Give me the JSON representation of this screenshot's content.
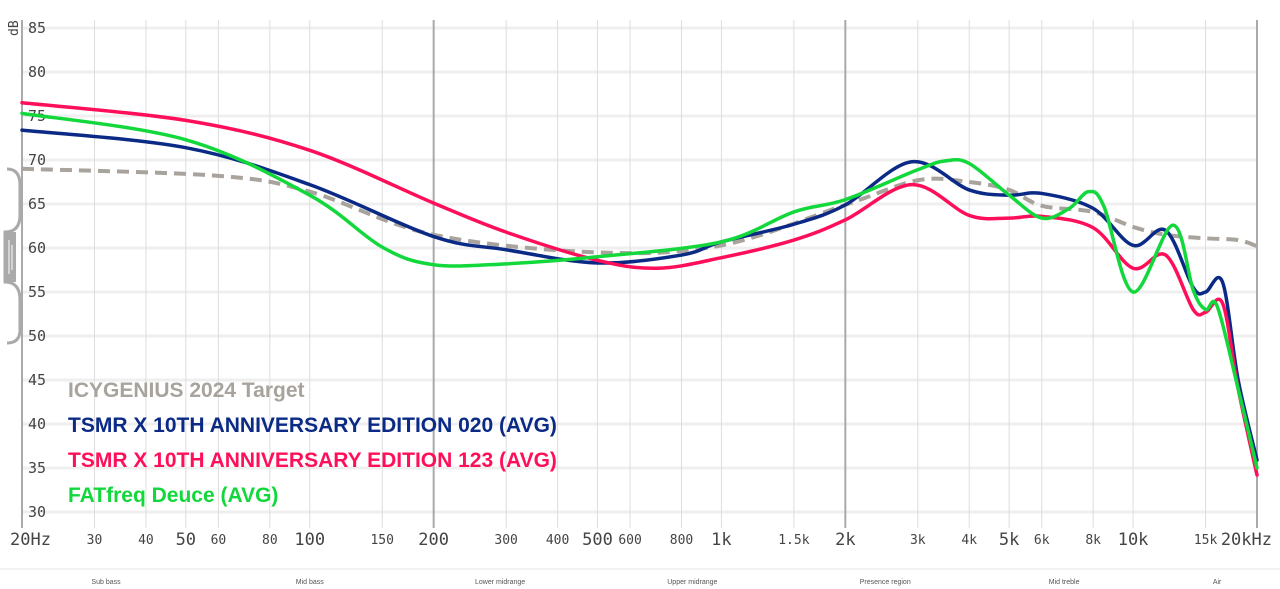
{
  "chart_data": {
    "type": "line",
    "ylabel": "dB",
    "xscale": "log",
    "xlim": [
      20,
      20000
    ],
    "ylim": [
      28,
      86
    ],
    "grid": true,
    "legend_position": "bottom-left",
    "y_ticks": [
      "85",
      "80",
      "75",
      "70",
      "65",
      "60",
      "55",
      "50",
      "45",
      "40",
      "35",
      "30"
    ],
    "y_tick_values": [
      85,
      80,
      75,
      70,
      65,
      60,
      55,
      50,
      45,
      40,
      35,
      30
    ],
    "x_ticks": [
      {
        "f": 20,
        "label": "20Hz",
        "major": true
      },
      {
        "f": 30,
        "label": "30"
      },
      {
        "f": 40,
        "label": "40"
      },
      {
        "f": 50,
        "label": "50",
        "major": true
      },
      {
        "f": 60,
        "label": "60"
      },
      {
        "f": 80,
        "label": "80"
      },
      {
        "f": 100,
        "label": "100",
        "major": true
      },
      {
        "f": 150,
        "label": "150"
      },
      {
        "f": 200,
        "label": "200",
        "major": true
      },
      {
        "f": 300,
        "label": "300"
      },
      {
        "f": 400,
        "label": "400"
      },
      {
        "f": 500,
        "label": "500",
        "major": true
      },
      {
        "f": 600,
        "label": "600"
      },
      {
        "f": 800,
        "label": "800"
      },
      {
        "f": 1000,
        "label": "1k",
        "major": true
      },
      {
        "f": 1500,
        "label": "1.5k"
      },
      {
        "f": 2000,
        "label": "2k",
        "major": true
      },
      {
        "f": 3000,
        "label": "3k"
      },
      {
        "f": 4000,
        "label": "4k"
      },
      {
        "f": 5000,
        "label": "5k",
        "major": true
      },
      {
        "f": 6000,
        "label": "6k"
      },
      {
        "f": 8000,
        "label": "8k"
      },
      {
        "f": 10000,
        "label": "10k",
        "major": true
      },
      {
        "f": 15000,
        "label": "15k"
      },
      {
        "f": 20000,
        "label": "20kHz",
        "major": true
      }
    ],
    "bands": [
      {
        "label": "Sub bass",
        "f": 32
      },
      {
        "label": "Mid bass",
        "f": 100
      },
      {
        "label": "Lower midrange",
        "f": 290
      },
      {
        "label": "Upper midrange",
        "f": 850
      },
      {
        "label": "Presence region",
        "f": 2500
      },
      {
        "label": "Mid treble",
        "f": 6800
      },
      {
        "label": "Air",
        "f": 16000
      }
    ],
    "series": [
      {
        "name": "ICYGENIUS 2024 Target",
        "color": "#a8a39c",
        "dashed": true,
        "points": [
          [
            20,
            69.0
          ],
          [
            60,
            68.2
          ],
          [
            100,
            66.4
          ],
          [
            200,
            61.5
          ],
          [
            500,
            59.5
          ],
          [
            1000,
            60.3
          ],
          [
            2000,
            64.9
          ],
          [
            3000,
            67.7
          ],
          [
            4000,
            67.5
          ],
          [
            5000,
            66.6
          ],
          [
            6000,
            64.8
          ],
          [
            8000,
            64.1
          ],
          [
            10000,
            62.4
          ],
          [
            12000,
            61.5
          ],
          [
            15000,
            61.1
          ],
          [
            18000,
            60.9
          ],
          [
            20000,
            60.2
          ]
        ]
      },
      {
        "name": "TSMR X 10TH ANNIVERSARY EDITION 020 (AVG)",
        "color": "#0a2a85",
        "points": [
          [
            20,
            73.4
          ],
          [
            50,
            71.4
          ],
          [
            100,
            67.2
          ],
          [
            200,
            61.3
          ],
          [
            300,
            59.8
          ],
          [
            500,
            58.3
          ],
          [
            800,
            59.2
          ],
          [
            1000,
            60.7
          ],
          [
            1500,
            62.7
          ],
          [
            2000,
            64.9
          ],
          [
            2900,
            69.8
          ],
          [
            4000,
            66.6
          ],
          [
            5000,
            66.0
          ],
          [
            6000,
            66.2
          ],
          [
            8000,
            64.5
          ],
          [
            10000,
            60.3
          ],
          [
            12000,
            62.0
          ],
          [
            14000,
            55.5
          ],
          [
            15000,
            55.0
          ],
          [
            16500,
            56.1
          ],
          [
            18000,
            45.0
          ],
          [
            20000,
            35.9
          ]
        ]
      },
      {
        "name": "TSMR X 10TH ANNIVERSARY EDITION 123 (AVG)",
        "color": "#ff0f5a",
        "points": [
          [
            20,
            76.5
          ],
          [
            50,
            74.5
          ],
          [
            100,
            71.1
          ],
          [
            200,
            65.1
          ],
          [
            300,
            61.8
          ],
          [
            500,
            58.6
          ],
          [
            700,
            57.7
          ],
          [
            1000,
            58.9
          ],
          [
            1500,
            60.9
          ],
          [
            2000,
            63.2
          ],
          [
            2900,
            67.2
          ],
          [
            4000,
            63.7
          ],
          [
            5000,
            63.4
          ],
          [
            6000,
            63.6
          ],
          [
            8000,
            62.3
          ],
          [
            10000,
            57.7
          ],
          [
            12000,
            59.2
          ],
          [
            14000,
            53.0
          ],
          [
            15000,
            52.7
          ],
          [
            16500,
            53.7
          ],
          [
            18000,
            44.0
          ],
          [
            20000,
            34.2
          ]
        ]
      },
      {
        "name": "FATfreq Deuce (AVG)",
        "color": "#12d83c",
        "points": [
          [
            20,
            75.3
          ],
          [
            50,
            72.3
          ],
          [
            100,
            66.0
          ],
          [
            150,
            60.1
          ],
          [
            200,
            58.1
          ],
          [
            300,
            58.2
          ],
          [
            500,
            59.0
          ],
          [
            1000,
            60.7
          ],
          [
            1500,
            64.1
          ],
          [
            2000,
            65.5
          ],
          [
            3000,
            68.9
          ],
          [
            3500,
            69.9
          ],
          [
            4000,
            69.6
          ],
          [
            5000,
            66.0
          ],
          [
            6000,
            63.4
          ],
          [
            7000,
            64.5
          ],
          [
            7800,
            66.4
          ],
          [
            8500,
            64.7
          ],
          [
            10000,
            55.0
          ],
          [
            12500,
            62.6
          ],
          [
            14000,
            55.2
          ],
          [
            15000,
            53.0
          ],
          [
            16000,
            53.4
          ],
          [
            18000,
            44.0
          ],
          [
            20000,
            35.0
          ]
        ]
      }
    ]
  }
}
